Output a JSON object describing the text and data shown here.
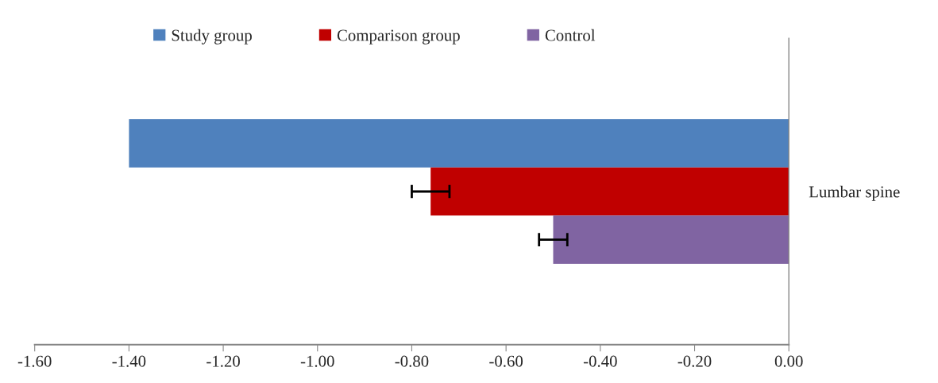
{
  "chart_data": {
    "type": "bar",
    "orientation": "horizontal",
    "categories": [
      "Lumbar spine"
    ],
    "series": [
      {
        "name": "Study group",
        "color": "#4f81bd",
        "values": [
          -1.4
        ]
      },
      {
        "name": "Comparison group",
        "color": "#c00000",
        "values": [
          -0.76
        ],
        "errors": [
          0.04
        ]
      },
      {
        "name": "Control",
        "color": "#8064a2",
        "values": [
          -0.5
        ],
        "errors": [
          0.03
        ]
      }
    ],
    "xlim": [
      -1.6,
      0.0
    ],
    "xticks": [
      {
        "value": -1.6,
        "label": "-1.60"
      },
      {
        "value": -1.4,
        "label": "-1.40"
      },
      {
        "value": -1.2,
        "label": "-1.20"
      },
      {
        "value": -1.0,
        "label": "-1.00"
      },
      {
        "value": -0.8,
        "label": "-0.80"
      },
      {
        "value": -0.6,
        "label": "-0.60"
      },
      {
        "value": -0.4,
        "label": "-0.40"
      },
      {
        "value": -0.2,
        "label": "-0.20"
      },
      {
        "value": 0.0,
        "label": "0.00"
      }
    ],
    "grid": false,
    "legend": "top"
  }
}
